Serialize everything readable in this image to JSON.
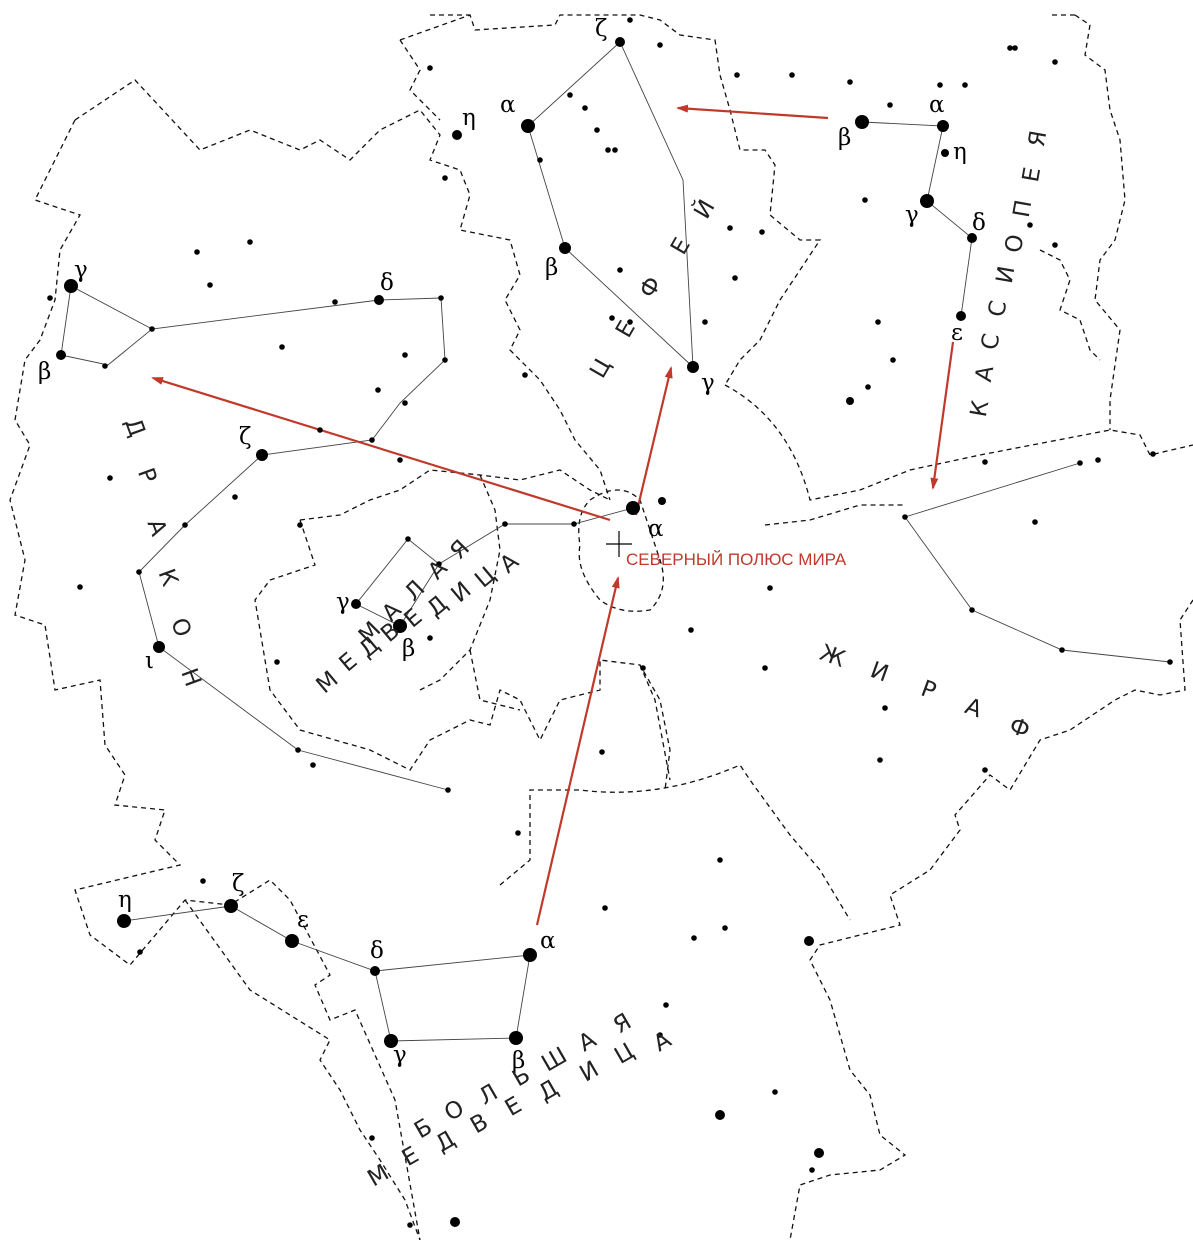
{
  "pole_label": "СЕВЕРНЫЙ ПОЛЮС МИРА",
  "constellations": {
    "cepheus": "ЦЕФЕЙ",
    "cassiopeia": "КАССИОПЕЯ",
    "draco": "ДРАКОН",
    "ursa_minor_line1": "МАЛАЯ",
    "ursa_minor_line2": "МЕДВЕДИЦА",
    "camelopardalis": "ЖИРАФ",
    "ursa_major_line1": "БОЛЬШАЯ",
    "ursa_major_line2": "МЕДВЕДИЦА"
  },
  "star_labels": {
    "cep_zeta": "ζ",
    "cep_alpha": "α",
    "cep_eta": "η",
    "cep_beta": "β",
    "cep_gamma": "γ",
    "cas_alpha": "α",
    "cas_beta": "β",
    "cas_eta": "η",
    "cas_gamma": "γ",
    "cas_delta": "δ",
    "cas_epsilon": "ε",
    "dra_gamma": "γ",
    "dra_beta": "β",
    "dra_delta": "δ",
    "dra_zeta": "ζ",
    "dra_iota": "ι",
    "umi_alpha": "α",
    "umi_beta": "β",
    "umi_gamma": "γ",
    "uma_eta": "η",
    "uma_zeta": "ζ",
    "uma_epsilon": "ε",
    "uma_delta": "δ",
    "uma_alpha": "α",
    "uma_beta": "β",
    "uma_gamma": "γ"
  },
  "colors": {
    "arrow": "#c0392b",
    "pole_label": "#c0392b",
    "boundary": "#111111",
    "star": "#000000"
  }
}
